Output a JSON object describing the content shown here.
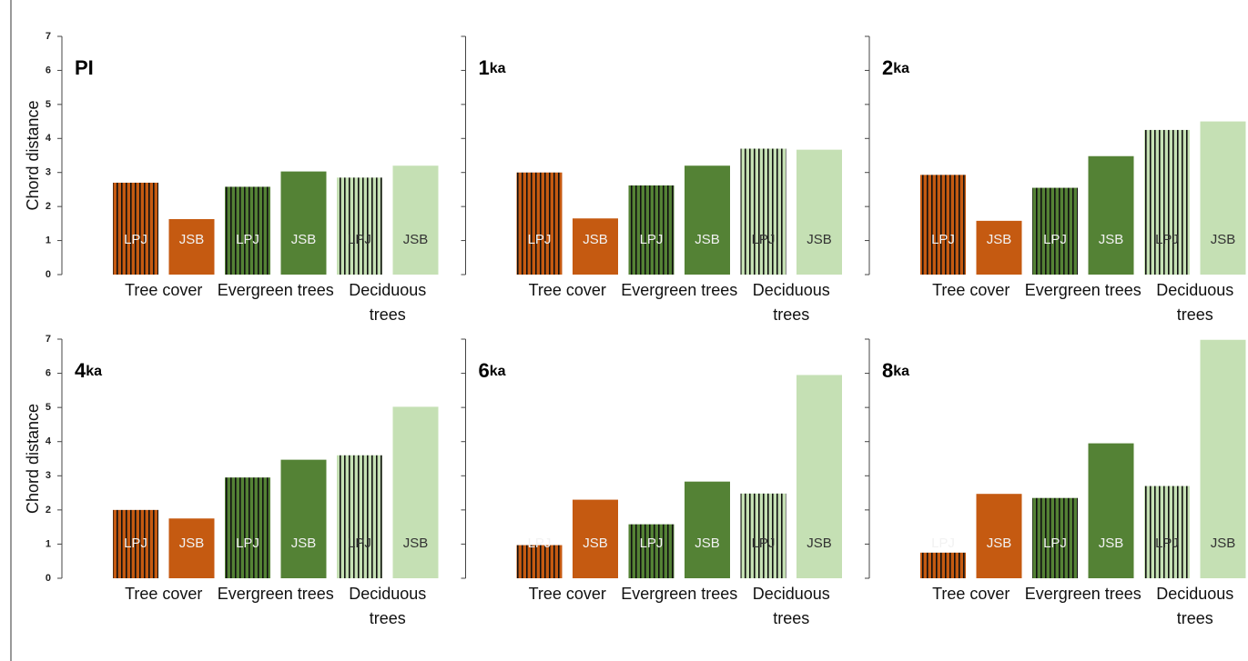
{
  "chart_data": [
    {
      "type": "bar",
      "title": "PI",
      "ylabel": "Chord distance",
      "ytick_labels": true,
      "categories": [
        "Tree cover",
        "Evergreen trees",
        "Deciduous trees"
      ],
      "group_colors": [
        "#c55a11",
        "#548235",
        "#c5e0b4"
      ],
      "series": [
        {
          "name": "LPJ",
          "pattern": "striped",
          "values": [
            2.7,
            2.58,
            2.85
          ]
        },
        {
          "name": "JSB",
          "values": [
            1.63,
            3.03,
            3.2
          ]
        }
      ],
      "ylim": [
        0,
        7
      ],
      "yticks": [
        0,
        1,
        2,
        3,
        4,
        5,
        6,
        7
      ]
    },
    {
      "type": "bar",
      "title": "1ka",
      "ytick_labels": false,
      "categories": [
        "Tree cover",
        "Evergreen trees",
        "Deciduous trees"
      ],
      "group_colors": [
        "#c55a11",
        "#548235",
        "#c5e0b4"
      ],
      "series": [
        {
          "name": "LPJ",
          "pattern": "striped",
          "values": [
            3.0,
            2.62,
            3.7
          ]
        },
        {
          "name": "JSB",
          "values": [
            1.65,
            3.2,
            3.67
          ]
        }
      ],
      "ylim": [
        0,
        7
      ],
      "yticks": [
        0,
        1,
        2,
        3,
        4,
        5,
        6,
        7
      ]
    },
    {
      "type": "bar",
      "title": "2ka",
      "ytick_labels": false,
      "categories": [
        "Tree cover",
        "Evergreen trees",
        "Deciduous trees"
      ],
      "group_colors": [
        "#c55a11",
        "#548235",
        "#c5e0b4"
      ],
      "series": [
        {
          "name": "LPJ",
          "pattern": "striped",
          "values": [
            2.93,
            2.55,
            4.25
          ]
        },
        {
          "name": "JSB",
          "values": [
            1.58,
            3.48,
            4.5
          ]
        }
      ],
      "ylim": [
        0,
        7
      ],
      "yticks": [
        0,
        1,
        2,
        3,
        4,
        5,
        6,
        7
      ]
    },
    {
      "type": "bar",
      "title": "4ka",
      "ylabel": "Chord distance",
      "ytick_labels": true,
      "categories": [
        "Tree cover",
        "Evergreen trees",
        "Deciduous trees"
      ],
      "group_colors": [
        "#c55a11",
        "#548235",
        "#c5e0b4"
      ],
      "series": [
        {
          "name": "LPJ",
          "pattern": "striped",
          "values": [
            2.0,
            2.95,
            3.6
          ]
        },
        {
          "name": "JSB",
          "values": [
            1.75,
            3.47,
            5.02
          ]
        }
      ],
      "ylim": [
        0,
        7
      ],
      "yticks": [
        0,
        1,
        2,
        3,
        4,
        5,
        6,
        7
      ]
    },
    {
      "type": "bar",
      "title": "6ka",
      "ytick_labels": false,
      "categories": [
        "Tree cover",
        "Evergreen trees",
        "Deciduous trees"
      ],
      "group_colors": [
        "#c55a11",
        "#548235",
        "#c5e0b4"
      ],
      "series": [
        {
          "name": "LPJ",
          "pattern": "striped",
          "values": [
            0.97,
            1.58,
            2.48
          ]
        },
        {
          "name": "JSB",
          "values": [
            2.3,
            2.83,
            5.95
          ]
        }
      ],
      "ylim": [
        0,
        7
      ],
      "yticks": [
        0,
        1,
        2,
        3,
        4,
        5,
        6,
        7
      ]
    },
    {
      "type": "bar",
      "title": "8ka",
      "ytick_labels": false,
      "categories": [
        "Tree cover",
        "Evergreen trees",
        "Deciduous trees"
      ],
      "group_colors": [
        "#c55a11",
        "#548235",
        "#c5e0b4"
      ],
      "series": [
        {
          "name": "LPJ",
          "pattern": "striped",
          "values": [
            0.75,
            2.35,
            2.7
          ]
        },
        {
          "name": "JSB",
          "values": [
            2.47,
            3.95,
            6.98
          ]
        }
      ],
      "ylim": [
        0,
        7
      ],
      "yticks": [
        0,
        1,
        2,
        3,
        4,
        5,
        6,
        7
      ]
    }
  ]
}
